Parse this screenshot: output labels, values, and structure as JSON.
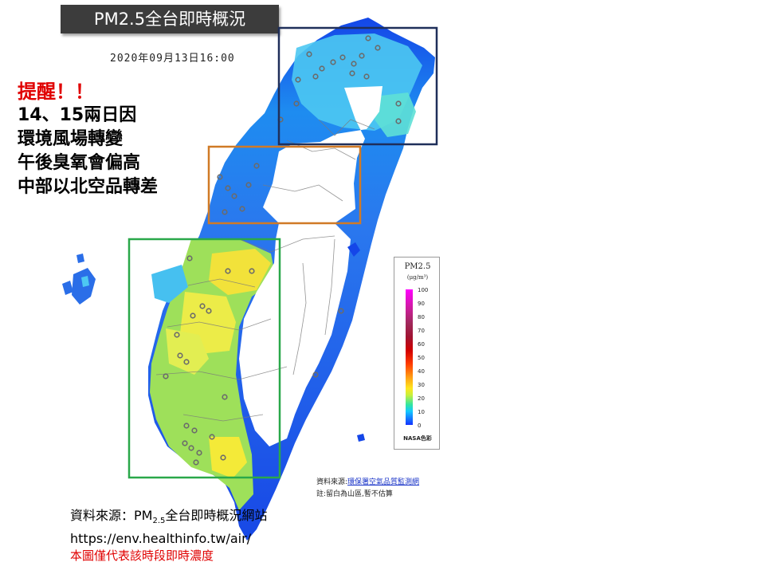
{
  "title": {
    "text": "PM2.5全台即時概況"
  },
  "datetime": "2020年09月13日16:00",
  "reminder": {
    "title": "提醒！！",
    "lines": [
      "14、15兩日因",
      "環境風場轉變",
      "午後臭氧會偏高",
      "中部以北空品轉差"
    ]
  },
  "legend": {
    "title": "PM2.5",
    "unit": "(μg/m³)",
    "ticks": [
      "100",
      "90",
      "80",
      "70",
      "60",
      "50",
      "40",
      "30",
      "20",
      "10",
      "0"
    ],
    "footer": "NASA色彩"
  },
  "map_source": {
    "label": "資料來源:",
    "link_text": "環保署空氣品質監測網",
    "note": "註:留白為山區,暫不估算"
  },
  "source": {
    "prefix": "資料來源：PM",
    "subscript": "2.5",
    "suffix": "全台即時概況網站",
    "url": "https://env.healthinfo.tw/air/",
    "note": "本圖僅代表該時段即時濃度"
  },
  "colors": {
    "north_box": "#1f2f5a",
    "central_box": "#d07a26",
    "south_box": "#2aa84a",
    "reminder_red": "#e00000",
    "title_bg": "#3c3c3c"
  }
}
